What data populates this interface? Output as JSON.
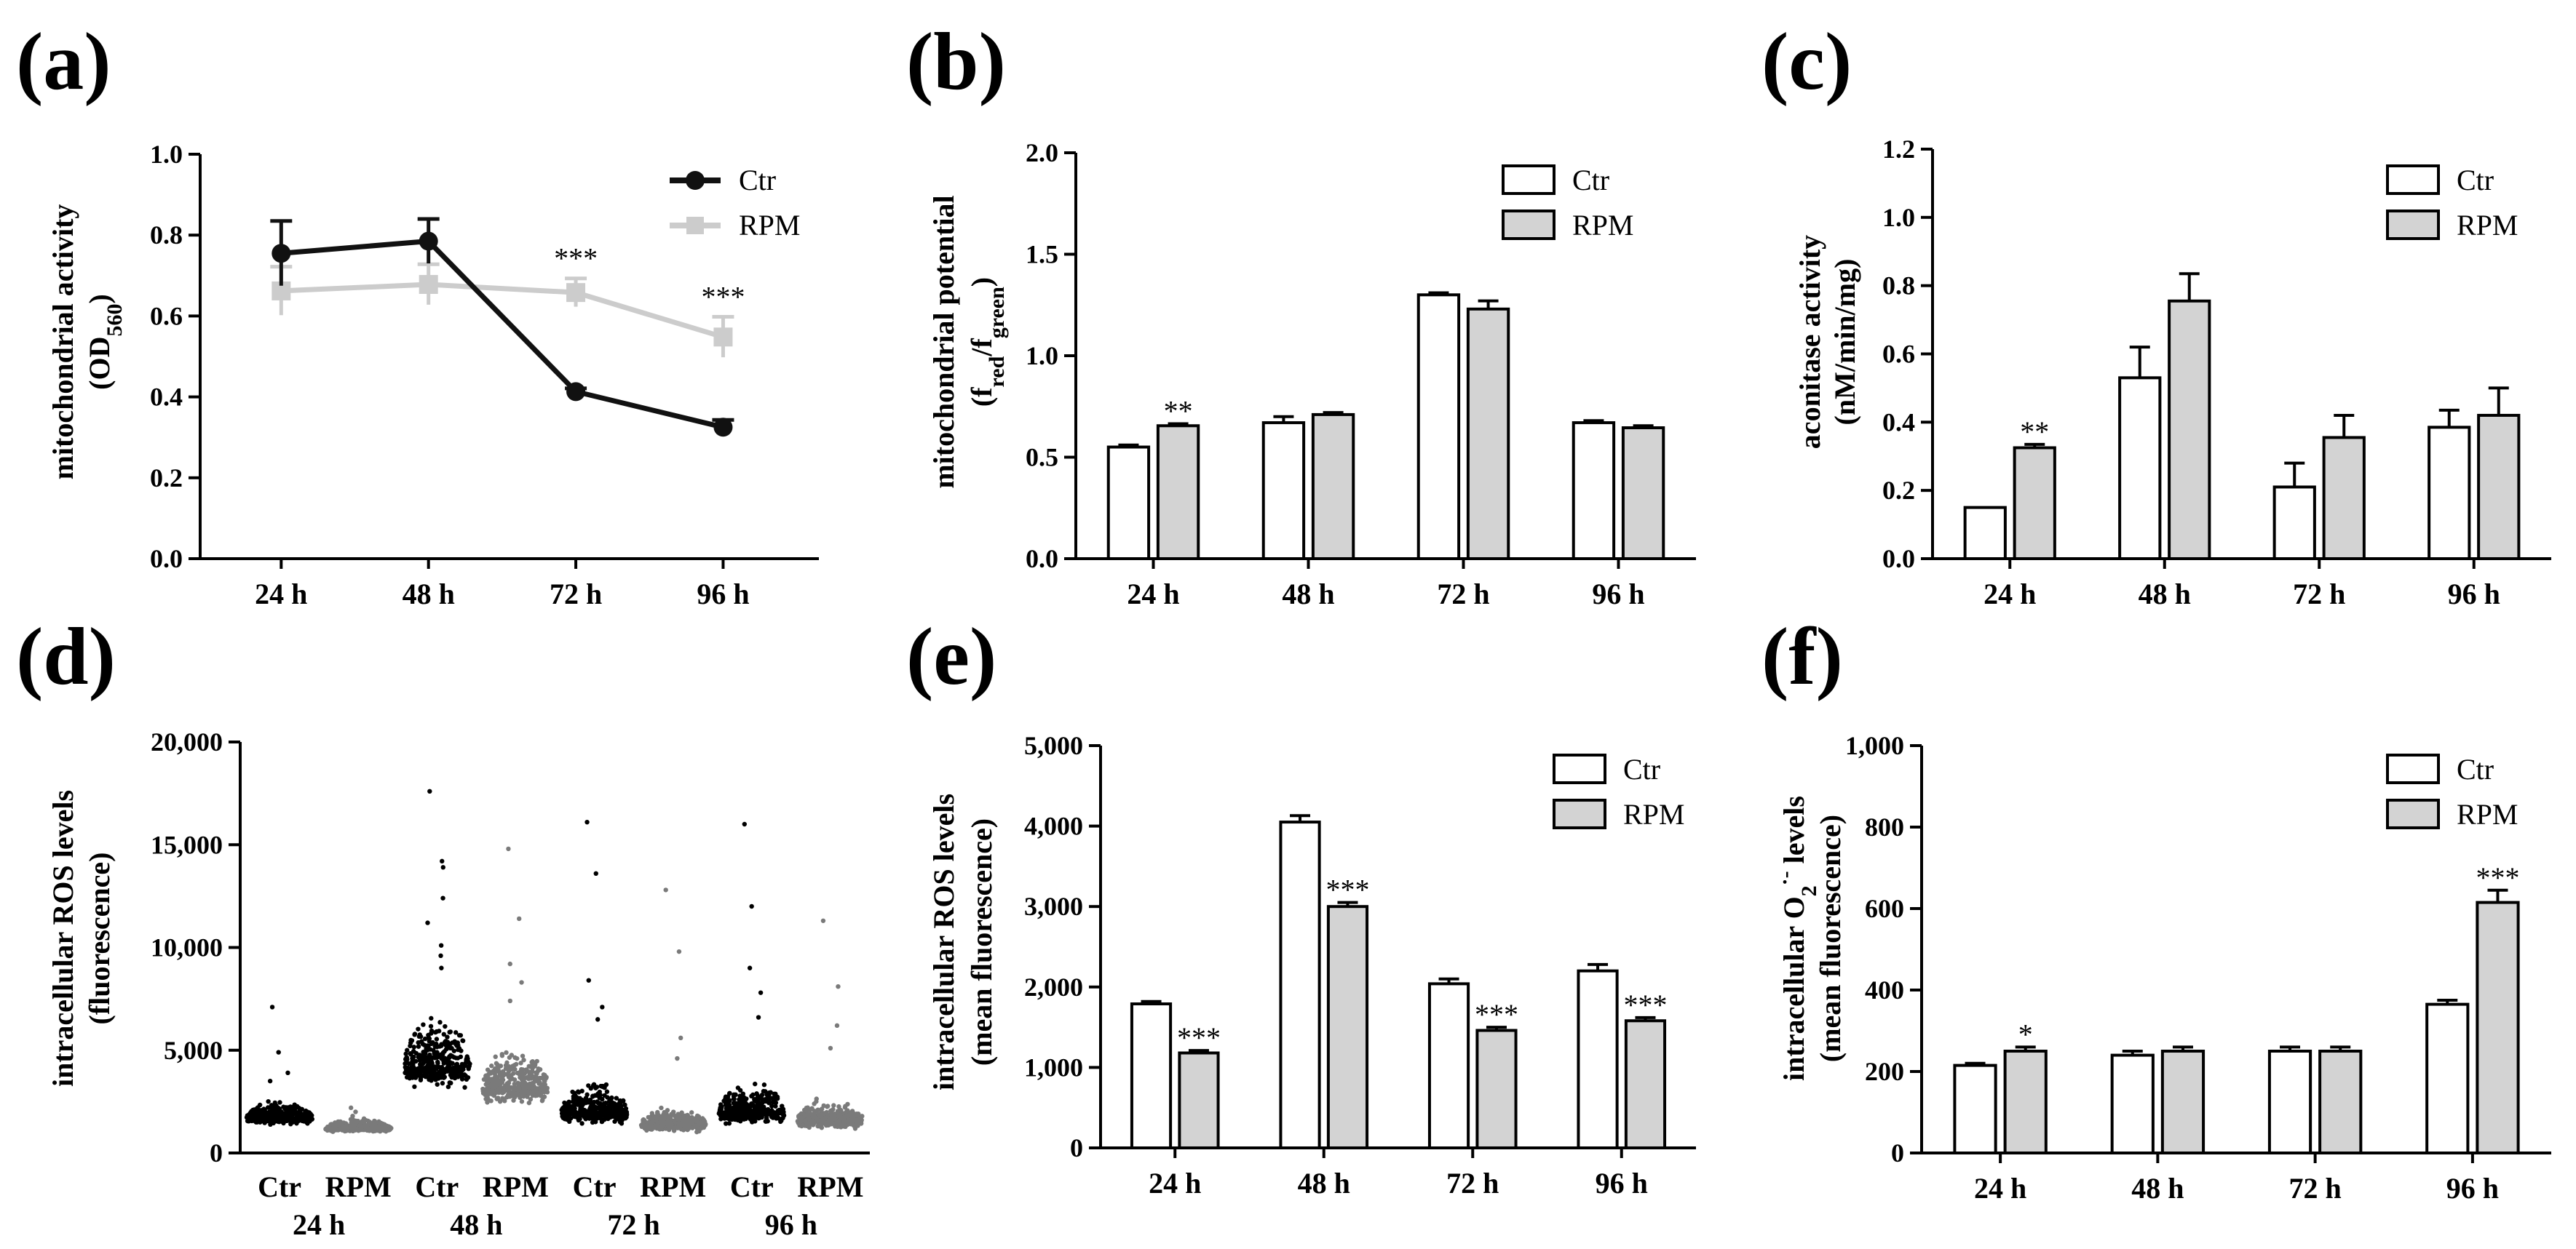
{
  "chart_data": [
    {
      "panel": "(a)",
      "type": "line",
      "ylabel": "mitochondrial activity",
      "ylabel_sub": "(OD",
      "ylabel_subscript": "560",
      "ylabel_close": ")",
      "ylim": [
        0,
        1.0
      ],
      "yticks": [
        0.0,
        0.2,
        0.4,
        0.6,
        0.8,
        1.0
      ],
      "ytick_labels": [
        "0.0",
        "0.2",
        "0.4",
        "0.6",
        "0.8",
        "1.0"
      ],
      "categories": [
        "24 h",
        "48 h",
        "72 h",
        "96 h"
      ],
      "series": [
        {
          "name": "Ctr",
          "color": "#111111",
          "values": [
            0.755,
            0.785,
            0.413,
            0.325
          ],
          "errors": [
            0.08,
            0.055,
            0.008,
            0.018
          ]
        },
        {
          "name": "RPM",
          "color": "#cccccc",
          "values": [
            0.662,
            0.678,
            0.658,
            0.548
          ],
          "errors": [
            0.06,
            0.05,
            0.035,
            0.05
          ]
        }
      ],
      "annotations": [
        {
          "category": 2,
          "text": "***"
        },
        {
          "category": 3,
          "text": "***"
        }
      ]
    },
    {
      "panel": "(b)",
      "type": "bar",
      "ylabel": "mitochondrial potential",
      "ylim": [
        0,
        2.0
      ],
      "yticks": [
        0.0,
        0.5,
        1.0,
        1.5,
        2.0
      ],
      "ytick_labels": [
        "0.0",
        "0.5",
        "1.0",
        "1.5",
        "2.0"
      ],
      "categories": [
        "24 h",
        "48 h",
        "72 h",
        "96 h"
      ],
      "series": [
        {
          "name": "Ctr",
          "color": "#ffffff",
          "values": [
            0.55,
            0.67,
            1.3,
            0.67
          ],
          "errors": [
            0.01,
            0.03,
            0.01,
            0.01
          ]
        },
        {
          "name": "RPM",
          "color": "#d3d3d3",
          "values": [
            0.655,
            0.71,
            1.23,
            0.645
          ],
          "errors": [
            0.01,
            0.01,
            0.04,
            0.01
          ]
        }
      ],
      "annotations": [
        {
          "category": 0,
          "series": 1,
          "text": "**"
        }
      ]
    },
    {
      "panel": "(c)",
      "type": "bar",
      "ylabel": "aconitase activity",
      "ylabel2": "(nM/min/mg)",
      "ylim": [
        0,
        1.2
      ],
      "yticks": [
        0.0,
        0.2,
        0.4,
        0.6,
        0.8,
        1.0,
        1.2
      ],
      "ytick_labels": [
        "0.0",
        "0.2",
        "0.4",
        "0.6",
        "0.8",
        "1.0",
        "1.2"
      ],
      "categories": [
        "24 h",
        "48 h",
        "72 h",
        "96 h"
      ],
      "series": [
        {
          "name": "Ctr",
          "color": "#ffffff",
          "values": [
            0.15,
            0.53,
            0.21,
            0.385
          ],
          "errors": [
            0.0,
            0.09,
            0.07,
            0.05
          ]
        },
        {
          "name": "RPM",
          "color": "#d3d3d3",
          "values": [
            0.325,
            0.755,
            0.355,
            0.42
          ],
          "errors": [
            0.01,
            0.08,
            0.065,
            0.08
          ]
        }
      ],
      "annotations": [
        {
          "category": 0,
          "series": 1,
          "text": "**"
        }
      ]
    },
    {
      "panel": "(d)",
      "type": "scatter",
      "ylabel": "intracellular ROS levels",
      "ylabel2": "(fluorescence)",
      "ylim": [
        0,
        20000
      ],
      "yticks": [
        0,
        5000,
        10000,
        15000,
        20000
      ],
      "ytick_labels": [
        "0",
        "5,000",
        "10,000",
        "15,000",
        "20,000"
      ],
      "groups": [
        {
          "label": "Ctr",
          "time": "24 h",
          "color": "#000000",
          "median": 1700,
          "spread": 450,
          "max": 7100,
          "outliers": [
            4900,
            3900,
            3500
          ]
        },
        {
          "label": "RPM",
          "time": "",
          "color": "#7a7a7a",
          "median": 1200,
          "spread": 250,
          "max": 2200,
          "outliers": [
            2000,
            1800
          ]
        },
        {
          "label": "Ctr",
          "time": "48 h",
          "color": "#000000",
          "median": 4200,
          "spread": 1400,
          "max": 17600,
          "outliers": [
            14200,
            13900,
            12400,
            11200,
            10100,
            9600,
            9000
          ]
        },
        {
          "label": "RPM",
          "time": "",
          "color": "#7a7a7a",
          "median": 3200,
          "spread": 1100,
          "max": 14800,
          "outliers": [
            11400,
            9200,
            8300,
            7400
          ]
        },
        {
          "label": "Ctr",
          "time": "72 h",
          "color": "#000000",
          "median": 2000,
          "spread": 800,
          "max": 16100,
          "outliers": [
            13600,
            8400,
            7100,
            6500
          ]
        },
        {
          "label": "RPM",
          "time": "",
          "color": "#7a7a7a",
          "median": 1400,
          "spread": 450,
          "max": 12800,
          "outliers": [
            9800,
            5600,
            4600
          ]
        },
        {
          "label": "Ctr",
          "time": "96 h",
          "color": "#000000",
          "median": 2000,
          "spread": 800,
          "max": 16000,
          "outliers": [
            12000,
            9000,
            7800,
            6600
          ]
        },
        {
          "label": "RPM",
          "time": "",
          "color": "#7a7a7a",
          "median": 1600,
          "spread": 550,
          "max": 11300,
          "outliers": [
            8100,
            6200,
            5100
          ]
        }
      ]
    },
    {
      "panel": "(e)",
      "type": "bar",
      "ylabel": "intracellular ROS levels",
      "ylabel2": "(mean fluorescence)",
      "ylim": [
        0,
        5000
      ],
      "yticks": [
        0,
        1000,
        2000,
        3000,
        4000,
        5000
      ],
      "ytick_labels": [
        "0",
        "1,000",
        "2,000",
        "3,000",
        "4,000",
        "5,000"
      ],
      "categories": [
        "24 h",
        "48  h",
        "72 h",
        "96 h"
      ],
      "series": [
        {
          "name": "Ctr",
          "color": "#ffffff",
          "values": [
            1790,
            4050,
            2040,
            2200
          ],
          "errors": [
            30,
            80,
            60,
            80
          ]
        },
        {
          "name": "RPM",
          "color": "#d3d3d3",
          "values": [
            1180,
            3000,
            1460,
            1580
          ],
          "errors": [
            30,
            50,
            40,
            40
          ]
        }
      ],
      "annotations": [
        {
          "category": 0,
          "series": 1,
          "text": "***"
        },
        {
          "category": 1,
          "series": 1,
          "text": "***"
        },
        {
          "category": 2,
          "series": 1,
          "text": "***"
        },
        {
          "category": 3,
          "series": 1,
          "text": "***"
        }
      ]
    },
    {
      "panel": "(f)",
      "type": "bar",
      "ylabel": "intracellular O",
      "ylabel_sub": "2",
      "ylabel_sup": "·-",
      "ylabel_tail": " levels",
      "ylabel2": "(mean fluorescence)",
      "ylim": [
        0,
        1000
      ],
      "yticks": [
        0,
        200,
        400,
        600,
        800,
        1000
      ],
      "ytick_labels": [
        "0",
        "200",
        "400",
        "600",
        "800",
        "1,000"
      ],
      "categories": [
        "24 h",
        "48 h",
        "72 h",
        "96 h"
      ],
      "series": [
        {
          "name": "Ctr",
          "color": "#ffffff",
          "values": [
            215,
            240,
            250,
            365
          ],
          "errors": [
            5,
            10,
            10,
            10
          ]
        },
        {
          "name": "RPM",
          "color": "#d3d3d3",
          "values": [
            250,
            250,
            250,
            615
          ],
          "errors": [
            10,
            10,
            10,
            30
          ]
        }
      ],
      "annotations": [
        {
          "category": 0,
          "series": 1,
          "text": "*"
        },
        {
          "category": 3,
          "series": 1,
          "text": "***"
        }
      ]
    }
  ],
  "panel_b_ylabel_parts": {
    "open": "(f",
    "sub1": "red",
    "slash": "/f",
    "sub2": "green",
    "close": ")"
  },
  "panel_d_times": [
    "24 h",
    "48 h",
    "72 h",
    "96 h"
  ]
}
